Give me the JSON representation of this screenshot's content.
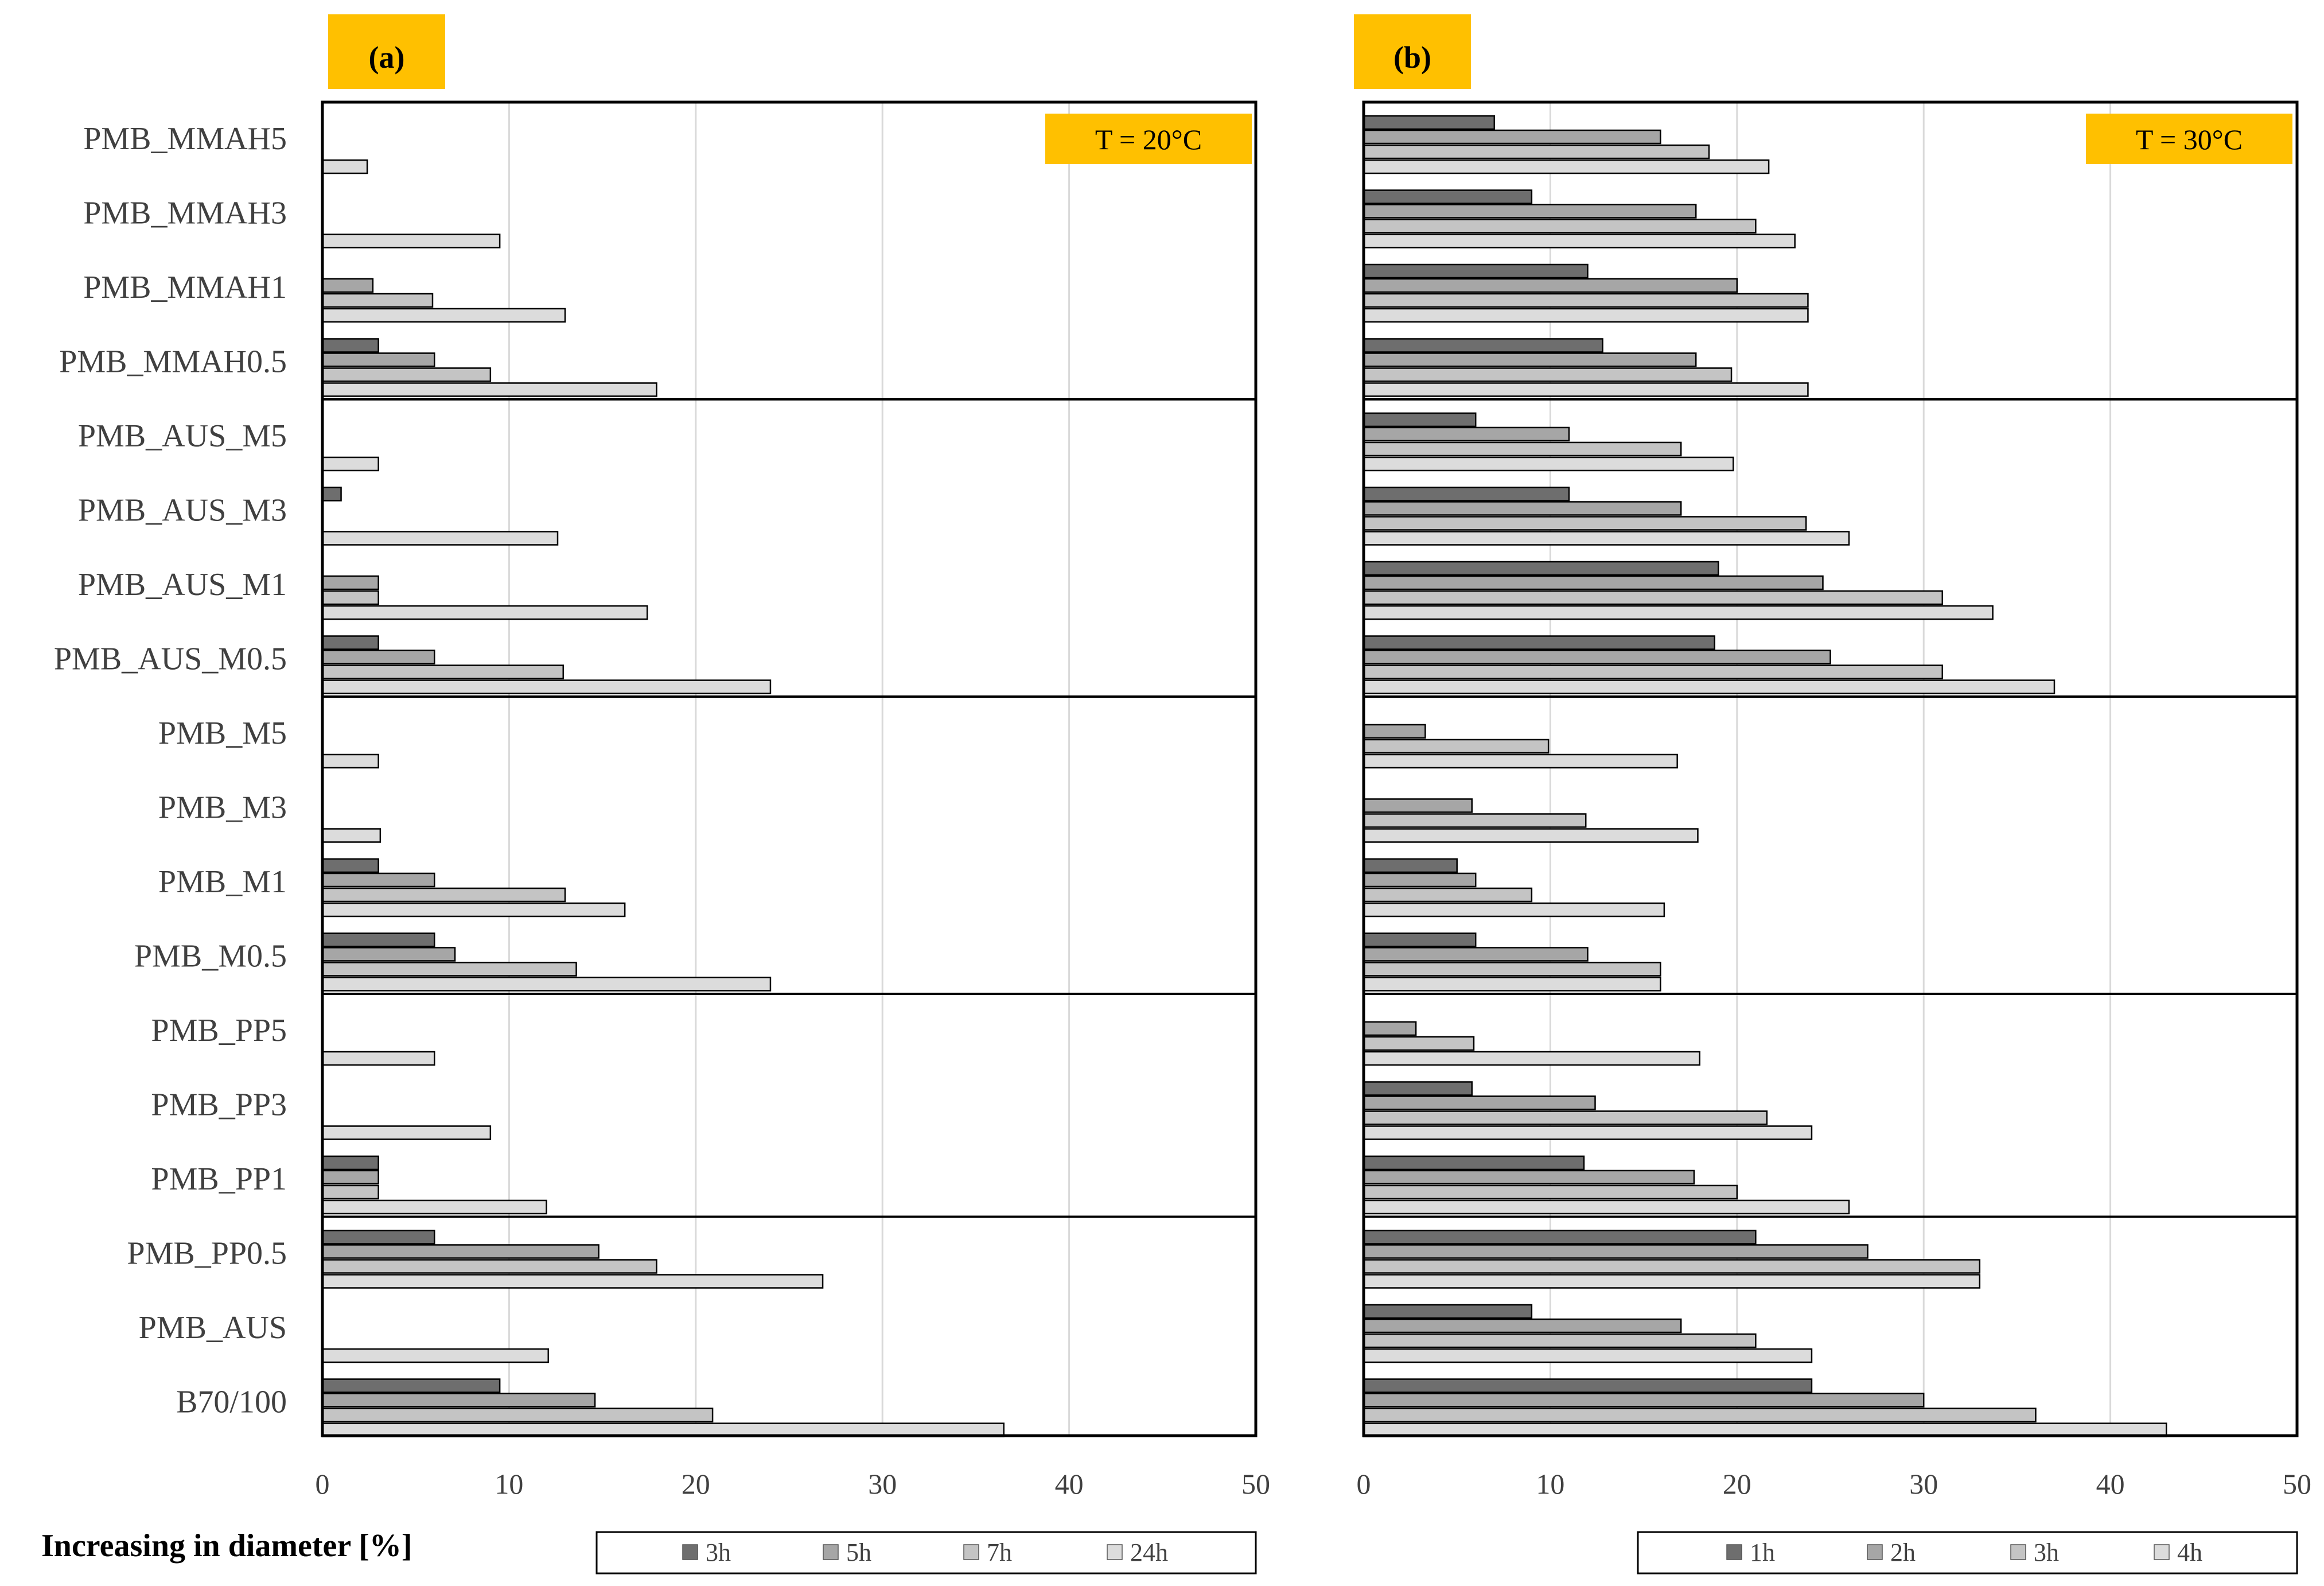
{
  "figure": {
    "xlabel": "Increasing in diameter [%]",
    "xticks": [
      "0",
      "10",
      "20",
      "30",
      "40",
      "50"
    ]
  },
  "colors": {
    "s1": "#6e6e6e",
    "s2": "#a6a6a6",
    "s3": "#c4c4c4",
    "s4": "#dcdcdc",
    "accent": "#ffc000",
    "frame": "#000000",
    "grid": "#d9d9d9"
  },
  "chart_data": [
    {
      "type": "bar",
      "orientation": "horizontal",
      "panel_label": "(a)",
      "annotation": "T = 20°C",
      "xlabel": "Increasing in diameter [%]",
      "xlim": [
        0,
        50
      ],
      "grid": true,
      "legend_position": "bottom",
      "categories": [
        "PMB_MMAH5",
        "PMB_MMAH3",
        "PMB_MMAH1",
        "PMB_MMAH0.5",
        "PMB_AUS_M5",
        "PMB_AUS_M3",
        "PMB_AUS_M1",
        "PMB_AUS_M0.5",
        "PMB_M5",
        "PMB_M3",
        "PMB_M1",
        "PMB_M0.5",
        "PMB_PP5",
        "PMB_PP3",
        "PMB_PP1",
        "PMB_PP0.5",
        "PMB_AUS",
        "B70/100"
      ],
      "series": [
        {
          "name": "3h",
          "values": [
            0,
            0,
            0,
            3,
            0,
            1,
            0,
            3,
            0,
            0,
            3,
            6,
            0,
            0,
            3,
            6,
            0,
            9.5
          ]
        },
        {
          "name": "5h",
          "values": [
            0,
            0,
            2.7,
            6,
            0,
            0,
            3,
            6,
            0,
            0,
            6,
            7.1,
            0,
            0,
            3,
            14.8,
            0,
            14.6
          ]
        },
        {
          "name": "7h",
          "values": [
            0,
            0,
            5.9,
            9,
            0,
            0,
            3,
            12.9,
            0,
            0,
            13,
            13.6,
            0,
            0,
            3,
            17.9,
            0,
            20.9
          ]
        },
        {
          "name": "24h",
          "values": [
            2.4,
            9.5,
            13,
            17.9,
            3,
            12.6,
            17.4,
            24,
            3,
            3.1,
            16.2,
            24,
            6,
            9,
            12,
            26.8,
            12.1,
            36.5
          ]
        }
      ],
      "group_separators_after": [
        "PMB_MMAH0.5",
        "PMB_AUS_M0.5",
        "PMB_M0.5",
        "PMB_PP1"
      ]
    },
    {
      "type": "bar",
      "orientation": "horizontal",
      "panel_label": "(b)",
      "annotation": "T = 30°C",
      "xlabel": "",
      "xlim": [
        0,
        50
      ],
      "grid": true,
      "legend_position": "bottom",
      "categories": [
        "PMB_MMAH5",
        "PMB_MMAH3",
        "PMB_MMAH1",
        "PMB_MMAH0.5",
        "PMB_AUS_M5",
        "PMB_AUS_M3",
        "PMB_AUS_M1",
        "PMB_AUS_M0.5",
        "PMB_M5",
        "PMB_M3",
        "PMB_M1",
        "PMB_M0.5",
        "PMB_PP5",
        "PMB_PP3",
        "PMB_PP1",
        "PMB_PP0.5",
        "PMB_AUS",
        "B70/100"
      ],
      "series": [
        {
          "name": "1h",
          "values": [
            7,
            9,
            12,
            12.8,
            6,
            11,
            19,
            18.8,
            0,
            0,
            5,
            6,
            0,
            5.8,
            11.8,
            21,
            9,
            24
          ]
        },
        {
          "name": "2h",
          "values": [
            15.9,
            17.8,
            20,
            17.8,
            11,
            17,
            24.6,
            25,
            3.3,
            5.8,
            6,
            12,
            2.8,
            12.4,
            17.7,
            27,
            17,
            30
          ]
        },
        {
          "name": "3h",
          "values": [
            18.5,
            21,
            23.8,
            19.7,
            17,
            23.7,
            31,
            31,
            9.9,
            11.9,
            9,
            15.9,
            5.9,
            21.6,
            20,
            33,
            21,
            36
          ]
        },
        {
          "name": "4h",
          "values": [
            21.7,
            23.1,
            23.8,
            23.8,
            19.8,
            26,
            33.7,
            37,
            16.8,
            17.9,
            16.1,
            15.9,
            18,
            24,
            26,
            33,
            24,
            43
          ]
        }
      ],
      "group_separators_after": [
        "PMB_MMAH0.5",
        "PMB_AUS_M0.5",
        "PMB_M0.5",
        "PMB_PP1"
      ]
    }
  ]
}
